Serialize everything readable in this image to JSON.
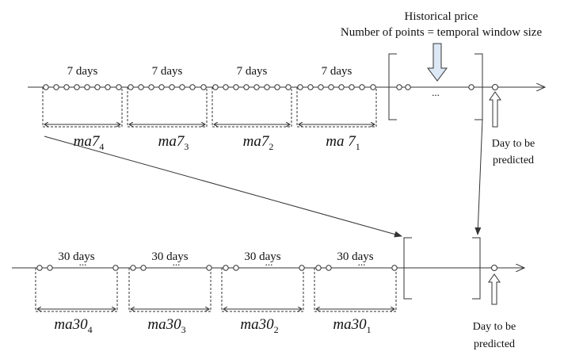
{
  "header": {
    "line1": "Historical price",
    "line2": "Number of points = temporal window size"
  },
  "top_row": {
    "windows": [
      {
        "label": "7 days",
        "ma_base": "ma7",
        "ma_sub": "4",
        "ellipsis": ""
      },
      {
        "label": "7 days",
        "ma_base": "ma7",
        "ma_sub": "3",
        "ellipsis": ""
      },
      {
        "label": "7 days",
        "ma_base": "ma7",
        "ma_sub": "2",
        "ellipsis": ""
      },
      {
        "label": "7 days",
        "ma_base": "ma 7",
        "ma_sub": "1",
        "ellipsis": ""
      }
    ],
    "bracket_ellipsis": "...",
    "predict_line1": "Day to be",
    "predict_line2": "predicted"
  },
  "bottom_row": {
    "windows": [
      {
        "label": "30 days",
        "ma_base": "ma30",
        "ma_sub": "4",
        "ellipsis": "..."
      },
      {
        "label": "30 days",
        "ma_base": "ma30",
        "ma_sub": "3",
        "ellipsis": "..."
      },
      {
        "label": "30 days",
        "ma_base": "ma30",
        "ma_sub": "2",
        "ellipsis": "..."
      },
      {
        "label": "30 days",
        "ma_base": "ma30",
        "ma_sub": "1",
        "ellipsis": "..."
      }
    ],
    "predict_line1": "Day to be",
    "predict_line2": "predicted"
  },
  "colors": {
    "line": "#333333",
    "dot_stroke": "#333333",
    "dot_fill": "#ffffff",
    "hollow_arrow_fill": "#dce8f5",
    "hollow_arrow_stroke": "#333333"
  }
}
